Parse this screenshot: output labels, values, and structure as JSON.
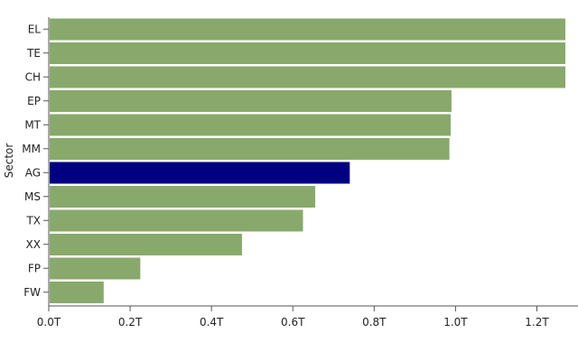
{
  "chart_data": {
    "type": "bar",
    "orientation": "horizontal",
    "ylabel": "Sector",
    "xlabel": "",
    "categories": [
      "EL",
      "TE",
      "CH",
      "EP",
      "MT",
      "MM",
      "AG",
      "MS",
      "TX",
      "XX",
      "FP",
      "FW"
    ],
    "values": [
      1.27,
      1.27,
      1.27,
      0.99,
      0.988,
      0.985,
      0.74,
      0.655,
      0.625,
      0.475,
      0.225,
      0.135
    ],
    "value_unit": "T",
    "xlim": [
      0,
      1.25
    ],
    "x_ticks": [
      0,
      0.2,
      0.4,
      0.6,
      0.8,
      1.0,
      1.2
    ],
    "x_tick_labels": [
      "0.0T",
      "0.2T",
      "0.4T",
      "0.6T",
      "0.8T",
      "1.0T",
      "1.2T"
    ],
    "highlighted_category": "AG",
    "grid": false,
    "colors": {
      "bar": "#88a96b",
      "highlight": "#000080"
    }
  }
}
